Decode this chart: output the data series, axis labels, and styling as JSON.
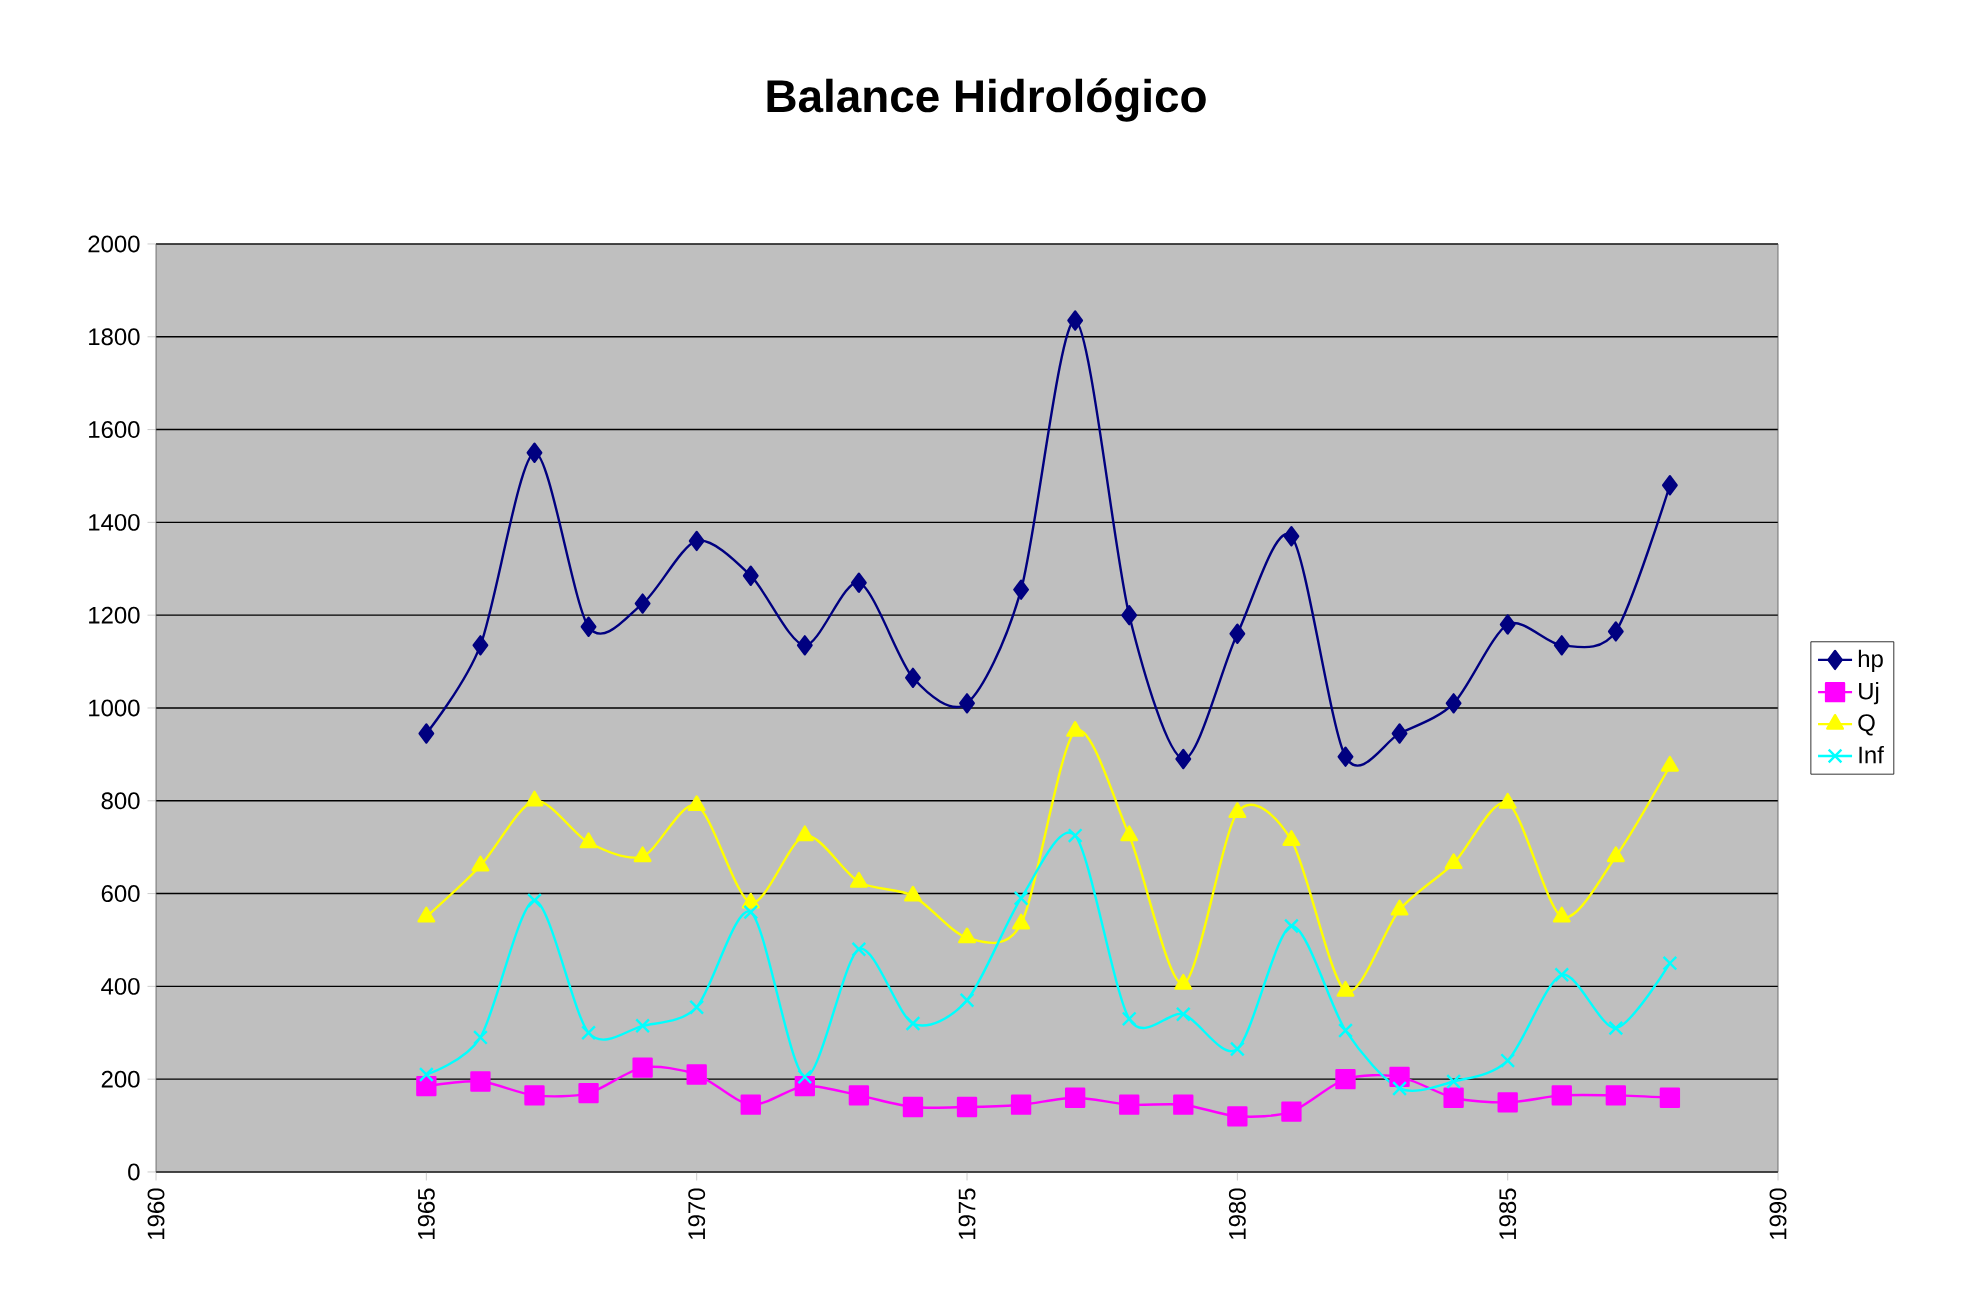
{
  "chart_data": {
    "type": "line",
    "title": "Balance Hidrológico",
    "x": [
      1965,
      1966,
      1967,
      1968,
      1969,
      1970,
      1971,
      1972,
      1973,
      1974,
      1975,
      1976,
      1977,
      1978,
      1979,
      1980,
      1981,
      1982,
      1983,
      1984,
      1985,
      1986,
      1987,
      1988
    ],
    "series": [
      {
        "name": "hp",
        "color": "#000080",
        "marker": "diamond",
        "values": [
          945,
          1135,
          1550,
          1175,
          1225,
          1360,
          1285,
          1135,
          1270,
          1065,
          1010,
          1255,
          1835,
          1200,
          890,
          1160,
          1370,
          895,
          945,
          1010,
          1180,
          1135,
          1165,
          1480
        ]
      },
      {
        "name": "Uj",
        "color": "#ff00ff",
        "marker": "square",
        "values": [
          185,
          195,
          165,
          170,
          225,
          210,
          145,
          185,
          165,
          140,
          140,
          145,
          160,
          145,
          145,
          120,
          130,
          200,
          205,
          160,
          150,
          165,
          165,
          160
        ]
      },
      {
        "name": "Q",
        "color": "#ffff00",
        "marker": "triangle",
        "values": [
          550,
          660,
          800,
          710,
          680,
          790,
          580,
          725,
          625,
          595,
          505,
          535,
          950,
          725,
          405,
          775,
          715,
          390,
          565,
          665,
          795,
          550,
          680,
          875
        ]
      },
      {
        "name": "Inf",
        "color": "#00ffff",
        "marker": "cross",
        "values": [
          210,
          290,
          585,
          300,
          315,
          355,
          560,
          205,
          480,
          320,
          370,
          590,
          725,
          330,
          340,
          265,
          530,
          305,
          180,
          195,
          240,
          425,
          310,
          450
        ]
      }
    ],
    "xlim": [
      1960,
      1990
    ],
    "xticks": [
      1960,
      1965,
      1970,
      1975,
      1980,
      1985,
      1990
    ],
    "ylim": [
      0,
      2000
    ],
    "yticks": [
      0,
      200,
      400,
      600,
      800,
      1000,
      1200,
      1400,
      1600,
      1800,
      2000
    ],
    "grid": "y",
    "legend": "right",
    "line_style": "solid"
  }
}
